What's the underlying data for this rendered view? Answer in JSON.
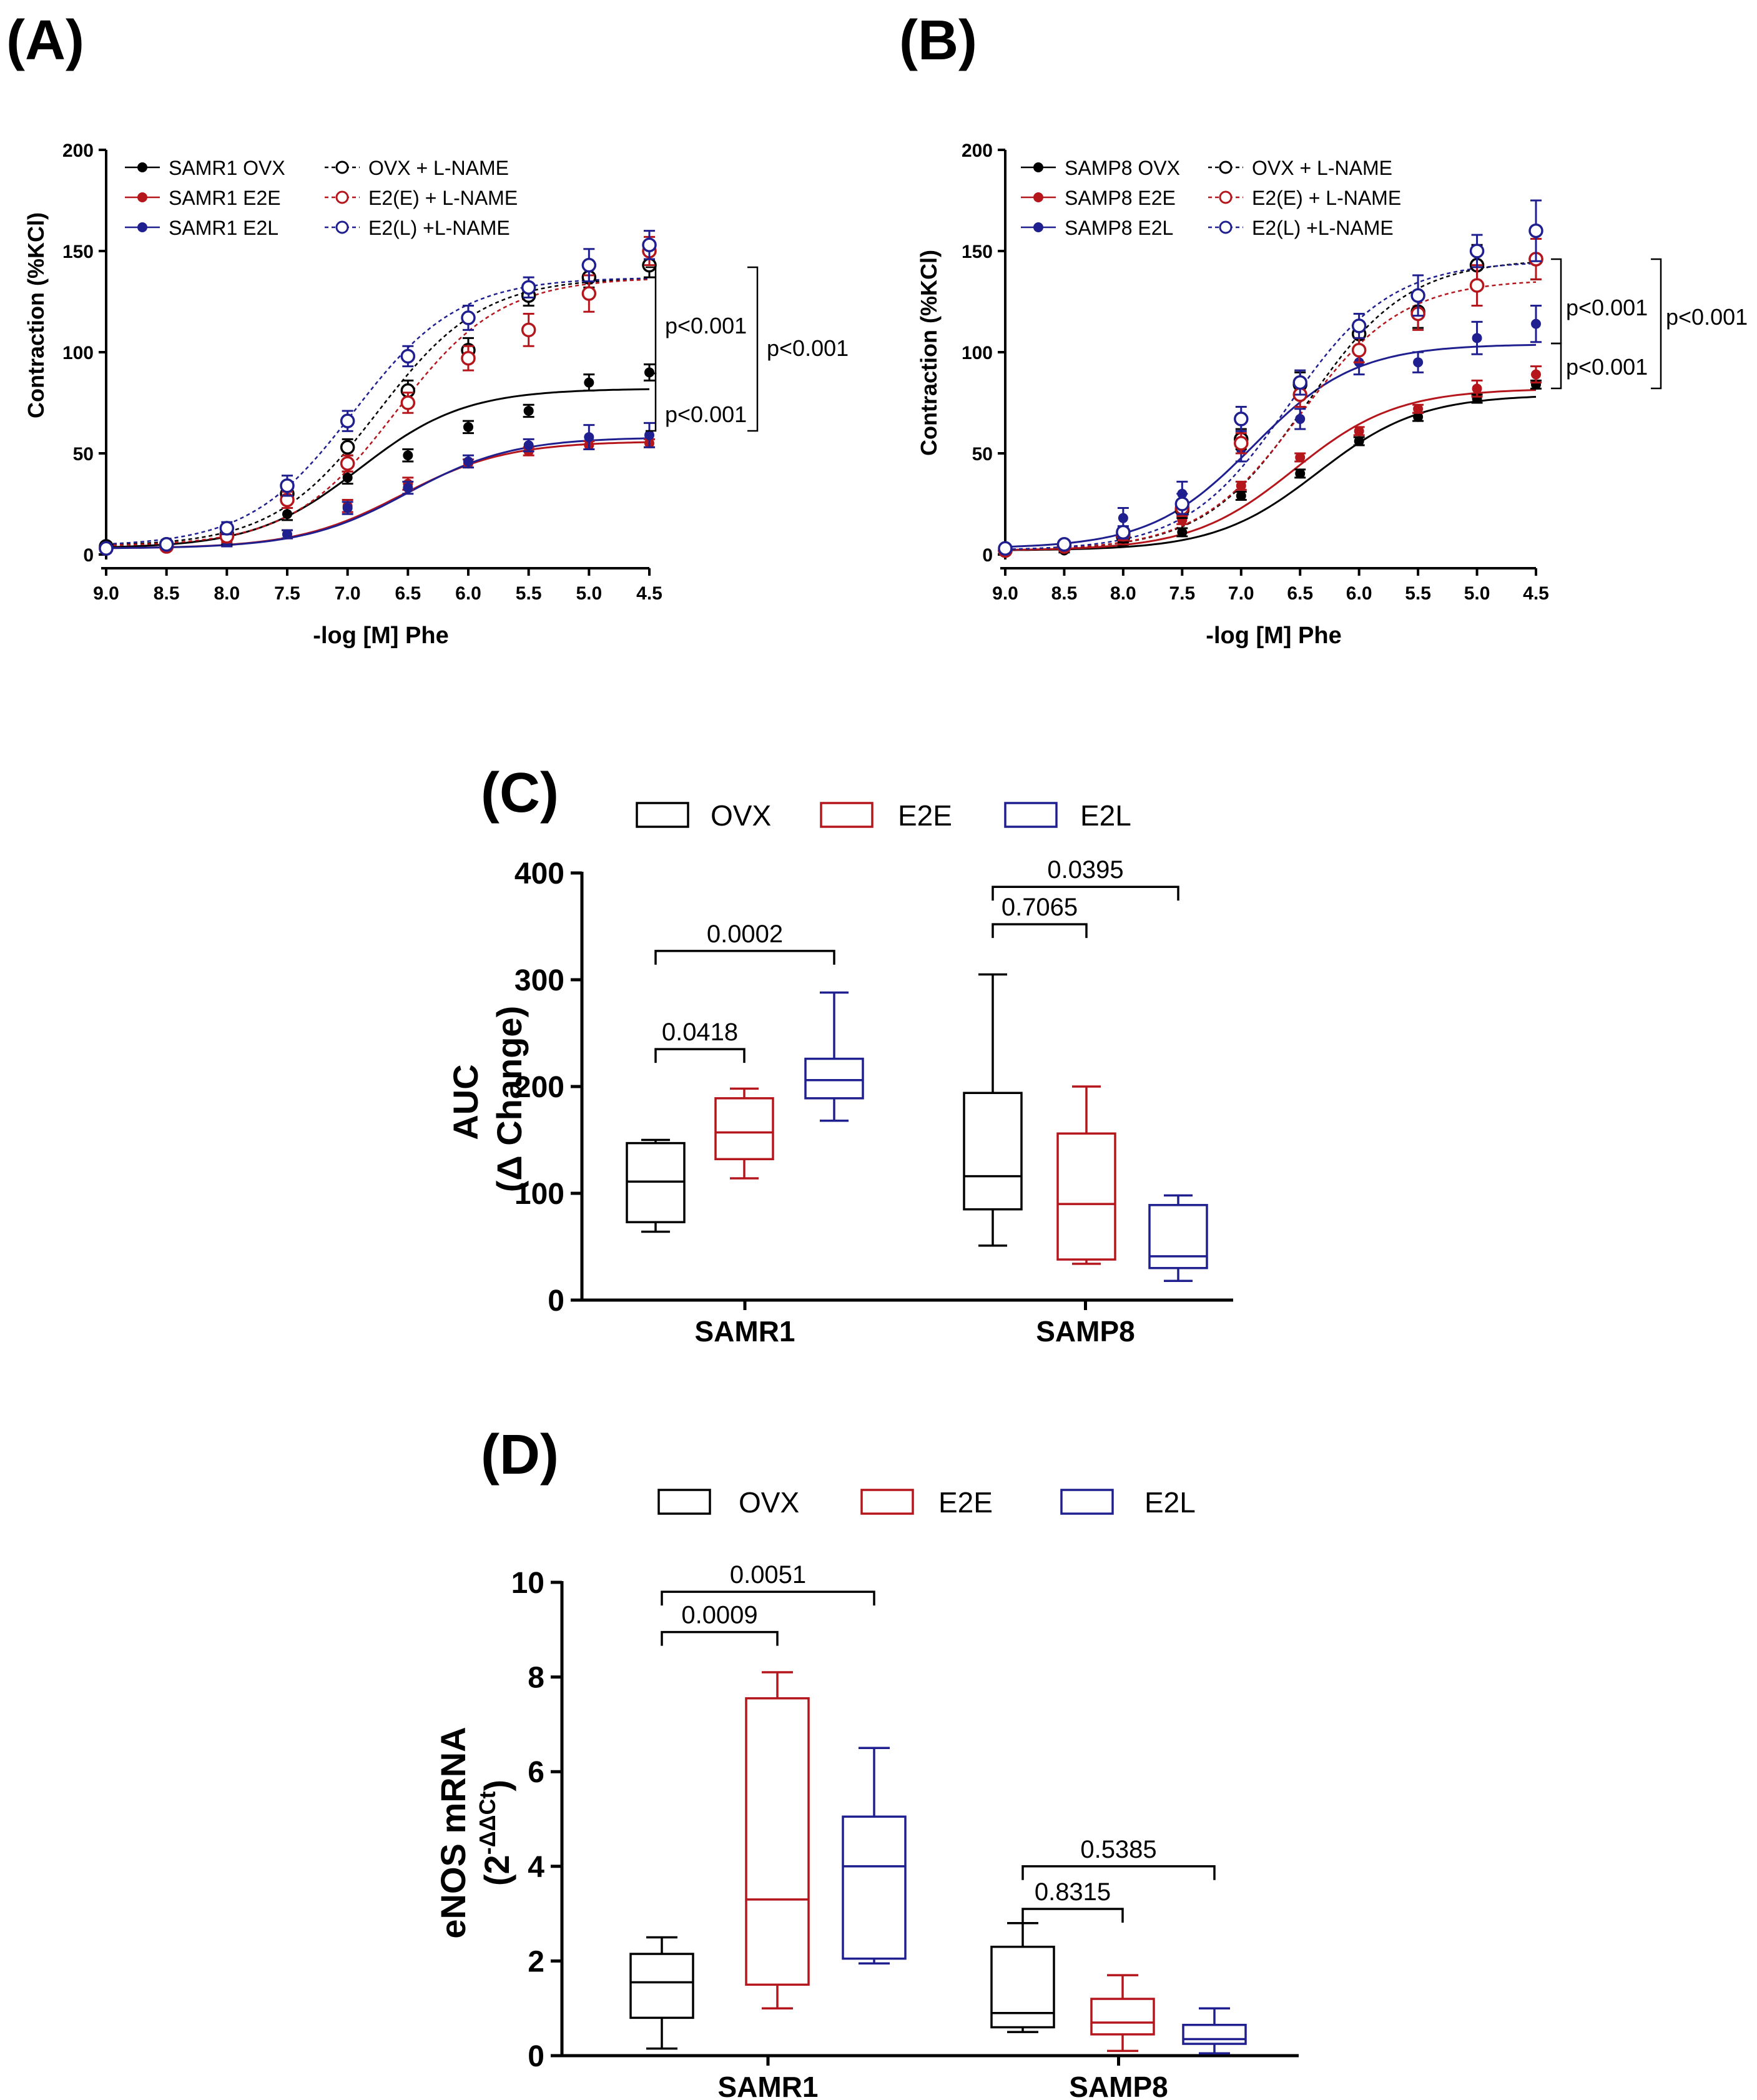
{
  "colors": {
    "ovx": "#000000",
    "e2e": "#b5161c",
    "e2l": "#1f1f8f"
  },
  "chart_data": [
    {
      "panel": "(A)",
      "type": "line",
      "xlabel": "-log [M] Phe",
      "ylabel": "Contraction (%KCl)",
      "x_ticks": [
        "9.0",
        "8.5",
        "8.0",
        "7.5",
        "7.0",
        "6.5",
        "6.0",
        "5.5",
        "5.0",
        "4.5"
      ],
      "x": [
        9.0,
        8.5,
        8.0,
        7.5,
        7.0,
        6.5,
        6.0,
        5.5,
        5.0,
        4.5
      ],
      "xlim": [
        9.0,
        4.5
      ],
      "ylim": [
        0,
        200
      ],
      "y_ticks": [
        "0",
        "50",
        "100",
        "150",
        "200"
      ],
      "legend": "top-left",
      "annotations": [
        "p<0.001",
        "p<0.001",
        "p<0.001"
      ],
      "series": [
        {
          "name": "SAMR1 OVX",
          "color": "ovx",
          "filled": true,
          "dashed": false,
          "values": [
            3,
            4,
            8,
            20,
            38,
            49,
            63,
            71,
            85,
            90
          ],
          "err": [
            2,
            2,
            3,
            3,
            3,
            3,
            3,
            3,
            4,
            4
          ],
          "fit": {
            "bottom": 3,
            "top": 82,
            "ec": 6.9
          }
        },
        {
          "name": "SAMR1 E2E",
          "color": "e2e",
          "filled": true,
          "dashed": false,
          "values": [
            2,
            3,
            6,
            10,
            24,
            35,
            45,
            51,
            54,
            55
          ],
          "err": [
            1,
            1,
            2,
            2,
            3,
            3,
            2,
            2,
            2,
            2
          ],
          "fit": {
            "bottom": 3,
            "top": 56,
            "ec": 6.55
          }
        },
        {
          "name": "SAMR1 E2L",
          "color": "e2l",
          "filled": true,
          "dashed": false,
          "values": [
            2,
            4,
            6,
            10,
            23,
            33,
            46,
            54,
            58,
            59
          ],
          "err": [
            1,
            1,
            2,
            2,
            3,
            3,
            3,
            3,
            6,
            6
          ],
          "fit": {
            "bottom": 3,
            "top": 58,
            "ec": 6.5
          }
        },
        {
          "name": "OVX + L-NAME",
          "color": "ovx",
          "filled": false,
          "dashed": true,
          "values": [
            4,
            5,
            10,
            30,
            53,
            81,
            101,
            128,
            137,
            143
          ],
          "err": [
            2,
            2,
            3,
            4,
            4,
            5,
            6,
            5,
            5,
            6
          ],
          "fit": {
            "bottom": 4,
            "top": 137,
            "ec": 6.75
          }
        },
        {
          "name": "E2(E) + L-NAME",
          "color": "e2e",
          "filled": false,
          "dashed": true,
          "values": [
            3,
            4,
            9,
            27,
            45,
            75,
            97,
            111,
            129,
            150
          ],
          "err": [
            2,
            2,
            3,
            4,
            4,
            5,
            6,
            8,
            9,
            7
          ],
          "fit": {
            "bottom": 4,
            "top": 137,
            "ec": 6.6
          }
        },
        {
          "name": "E2(L) +L-NAME",
          "color": "e2l",
          "filled": false,
          "dashed": true,
          "values": [
            3,
            5,
            13,
            34,
            66,
            98,
            117,
            132,
            143,
            153
          ],
          "err": [
            2,
            2,
            3,
            5,
            5,
            5,
            6,
            5,
            8,
            7
          ],
          "fit": {
            "bottom": 4,
            "top": 137,
            "ec": 6.95
          }
        }
      ]
    },
    {
      "panel": "(B)",
      "type": "line",
      "xlabel": "-log [M] Phe",
      "ylabel": "Contraction (%KCl)",
      "x_ticks": [
        "9.0",
        "8.5",
        "8.0",
        "7.5",
        "7.0",
        "6.5",
        "6.0",
        "5.5",
        "5.0",
        "4.5"
      ],
      "x": [
        9.0,
        8.5,
        8.0,
        7.5,
        7.0,
        6.5,
        6.0,
        5.5,
        5.0,
        4.5
      ],
      "xlim": [
        9.0,
        4.5
      ],
      "ylim": [
        0,
        200
      ],
      "y_ticks": [
        "0",
        "50",
        "100",
        "150",
        "200"
      ],
      "legend": "top-left",
      "annotations": [
        "p<0.001",
        "p<0.001",
        "p<0.001"
      ],
      "series": [
        {
          "name": "SAMP8 OVX",
          "color": "ovx",
          "filled": true,
          "dashed": false,
          "values": [
            1,
            2,
            6,
            11,
            29,
            40,
            56,
            68,
            77,
            84
          ],
          "err": [
            1,
            1,
            2,
            2,
            2,
            2,
            2,
            2,
            2,
            2
          ],
          "fit": {
            "bottom": 2,
            "top": 79,
            "ec": 6.35
          }
        },
        {
          "name": "SAMP8 E2E",
          "color": "e2e",
          "filled": true,
          "dashed": false,
          "values": [
            2,
            3,
            7,
            17,
            34,
            48,
            61,
            72,
            82,
            89
          ],
          "err": [
            1,
            1,
            2,
            2,
            2,
            2,
            2,
            2,
            4,
            4
          ],
          "fit": {
            "bottom": 2,
            "top": 82,
            "ec": 6.55
          }
        },
        {
          "name": "SAMP8 E2L",
          "color": "e2l",
          "filled": true,
          "dashed": false,
          "values": [
            2,
            4,
            18,
            30,
            52,
            67,
            95,
            95,
            107,
            114
          ],
          "err": [
            1,
            2,
            5,
            6,
            6,
            5,
            6,
            5,
            8,
            9
          ],
          "fit": {
            "bottom": 3,
            "top": 104,
            "ec": 6.9
          }
        },
        {
          "name": "OVX + L-NAME",
          "color": "ovx",
          "filled": false,
          "dashed": true,
          "values": [
            2,
            4,
            9,
            22,
            57,
            84,
            109,
            120,
            143,
            146
          ],
          "err": [
            1,
            2,
            3,
            4,
            5,
            6,
            6,
            8,
            10,
            10
          ],
          "fit": {
            "bottom": 2,
            "top": 146,
            "ec": 6.45
          }
        },
        {
          "name": "E2(E) + L-NAME",
          "color": "e2e",
          "filled": false,
          "dashed": true,
          "values": [
            2,
            4,
            10,
            23,
            55,
            79,
            101,
            119,
            133,
            146
          ],
          "err": [
            1,
            2,
            3,
            4,
            5,
            6,
            6,
            8,
            10,
            10
          ],
          "fit": {
            "bottom": 2,
            "top": 136,
            "ec": 6.5
          }
        },
        {
          "name": "E2(L) +L-NAME",
          "color": "e2l",
          "filled": false,
          "dashed": true,
          "values": [
            3,
            5,
            11,
            25,
            67,
            85,
            113,
            128,
            150,
            160
          ],
          "err": [
            1,
            2,
            3,
            5,
            6,
            6,
            6,
            10,
            8,
            15
          ],
          "fit": {
            "bottom": 2,
            "top": 145,
            "ec": 6.6
          }
        }
      ]
    },
    {
      "panel": "(C)",
      "type": "box",
      "ylabel": "AUC",
      "ylabel2": "(Δ Change)",
      "ylim": [
        0,
        400
      ],
      "y_ticks": [
        "0",
        "100",
        "200",
        "300",
        "400"
      ],
      "categories": [
        "SAMR1",
        "SAMP8"
      ],
      "legend": [
        "OVX",
        "E2E",
        "E2L"
      ],
      "series": [
        {
          "name": "OVX",
          "color": "ovx",
          "boxes": [
            {
              "min": 64,
              "q1": 73,
              "median": 111,
              "q3": 147,
              "max": 150
            },
            {
              "min": 51,
              "q1": 85,
              "median": 116,
              "q3": 194,
              "max": 305
            }
          ]
        },
        {
          "name": "E2E",
          "color": "e2e",
          "boxes": [
            {
              "min": 114,
              "q1": 132,
              "median": 157,
              "q3": 189,
              "max": 198
            },
            {
              "min": 34,
              "q1": 38,
              "median": 90,
              "q3": 156,
              "max": 200
            }
          ]
        },
        {
          "name": "E2L",
          "color": "e2l",
          "boxes": [
            {
              "min": 168,
              "q1": 189,
              "median": 206,
              "q3": 226,
              "max": 288
            },
            {
              "min": 18,
              "q1": 30,
              "median": 41,
              "q3": 89,
              "max": 98
            }
          ]
        }
      ],
      "comparisons": [
        {
          "label": "0.0418",
          "group": 0,
          "from": 0,
          "to": 1,
          "y": 235
        },
        {
          "label": "0.0002",
          "group": 0,
          "from": 0,
          "to": 2,
          "y": 327
        },
        {
          "label": "0.7065",
          "group": 1,
          "from": 0,
          "to": 1,
          "y": 352
        },
        {
          "label": "0.0395",
          "group": 1,
          "from": 0,
          "to": 2,
          "y": 387
        }
      ]
    },
    {
      "panel": "(D)",
      "type": "box",
      "ylabel": "eNOS mRNA",
      "ylabel2_base": "(2",
      "ylabel2_sup": "-ΔΔCt",
      "ylabel2_end": ")",
      "ylim": [
        0,
        10
      ],
      "y_ticks": [
        "0",
        "2",
        "4",
        "6",
        "8",
        "10"
      ],
      "categories": [
        "SAMR1",
        "SAMP8"
      ],
      "legend": [
        "OVX",
        "E2E",
        "E2L"
      ],
      "series": [
        {
          "name": "OVX",
          "color": "ovx",
          "boxes": [
            {
              "min": 0.15,
              "q1": 0.8,
              "median": 1.55,
              "q3": 2.15,
              "max": 2.5
            },
            {
              "min": 0.5,
              "q1": 0.6,
              "median": 0.9,
              "q3": 2.3,
              "max": 2.8
            }
          ]
        },
        {
          "name": "E2E",
          "color": "e2e",
          "boxes": [
            {
              "min": 1.0,
              "q1": 1.5,
              "median": 3.3,
              "q3": 7.55,
              "max": 8.1
            },
            {
              "min": 0.1,
              "q1": 0.45,
              "median": 0.7,
              "q3": 1.2,
              "max": 1.7
            }
          ]
        },
        {
          "name": "E2L",
          "color": "e2l",
          "boxes": [
            {
              "min": 1.95,
              "q1": 2.05,
              "median": 4.0,
              "q3": 5.05,
              "max": 6.5
            },
            {
              "min": 0.05,
              "q1": 0.25,
              "median": 0.35,
              "q3": 0.65,
              "max": 1.0
            }
          ]
        }
      ],
      "comparisons": [
        {
          "label": "0.0009",
          "group": 0,
          "from": 0,
          "to": 1,
          "y": 8.95
        },
        {
          "label": "0.0051",
          "group": 0,
          "from": 0,
          "to": 2,
          "y": 9.8
        },
        {
          "label": "0.8315",
          "group": 1,
          "from": 0,
          "to": 1,
          "y": 3.1
        },
        {
          "label": "0.5385",
          "group": 1,
          "from": 0,
          "to": 2,
          "y": 4.0
        }
      ]
    }
  ]
}
